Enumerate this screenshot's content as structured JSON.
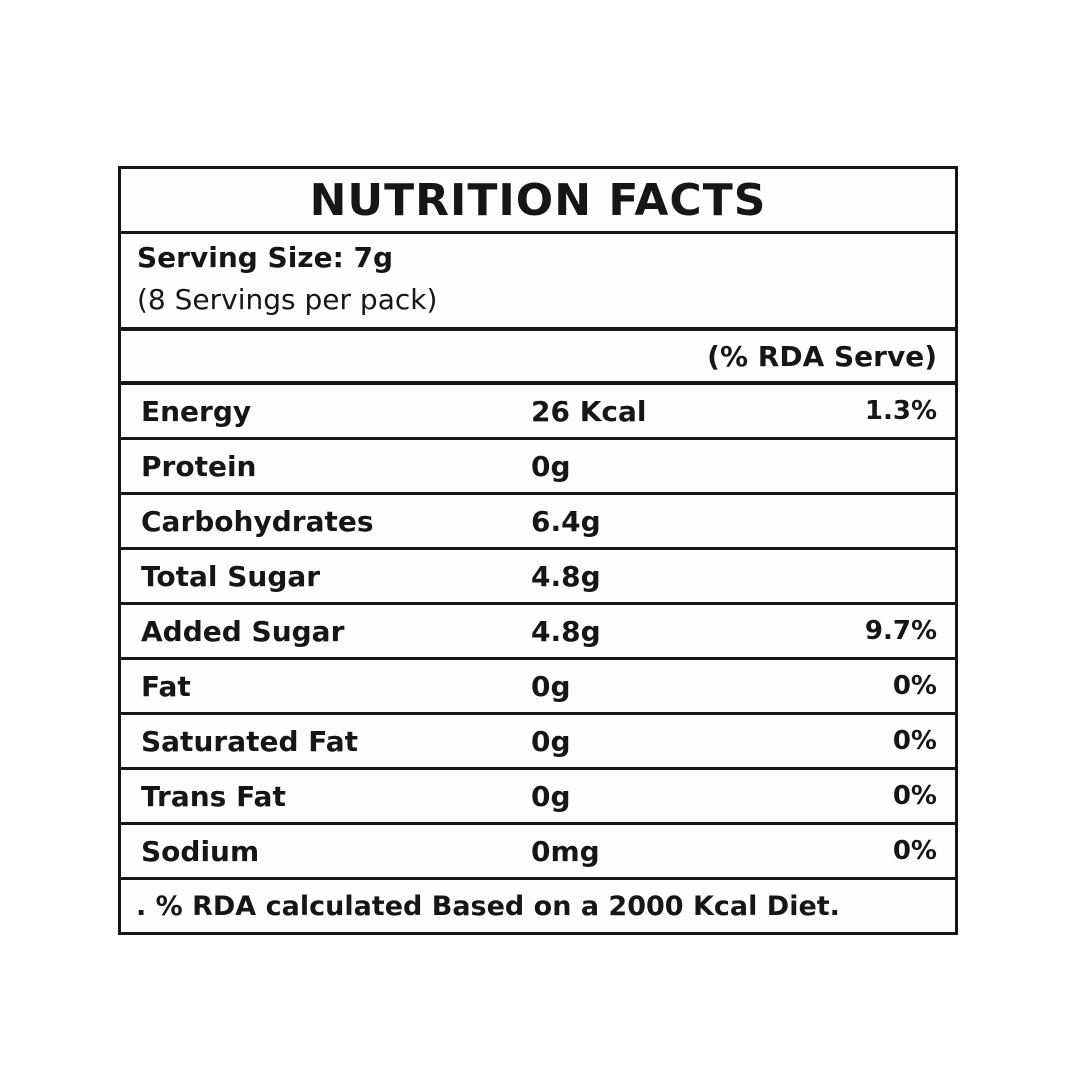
{
  "label": {
    "title": "NUTRITION FACTS",
    "serving": {
      "size": "Serving Size: 7g",
      "per_pack": "(8 Servings per pack)"
    },
    "header": {
      "rda": "(% RDA Serve)"
    },
    "rows": [
      {
        "name": "Energy",
        "amount": "26 Kcal",
        "rda": "1.3%"
      },
      {
        "name": "Protein",
        "amount": "0g",
        "rda": ""
      },
      {
        "name": "Carbohydrates",
        "amount": "6.4g",
        "rda": ""
      },
      {
        "name": "Total Sugar",
        "amount": "4.8g",
        "rda": ""
      },
      {
        "name": "Added Sugar",
        "amount": "4.8g",
        "rda": "9.7%"
      },
      {
        "name": "Fat",
        "amount": "0g",
        "rda": "0%"
      },
      {
        "name": "Saturated Fat",
        "amount": "0g",
        "rda": "0%"
      },
      {
        "name": "Trans Fat",
        "amount": "0g",
        "rda": "0%"
      },
      {
        "name": "Sodium",
        "amount": "0mg",
        "rda": "0%"
      }
    ],
    "footnote": ". % RDA calculated Based on a 2000 Kcal Diet.",
    "colors": {
      "border": "#161616",
      "text": "#161616",
      "background": "#ffffff"
    }
  }
}
